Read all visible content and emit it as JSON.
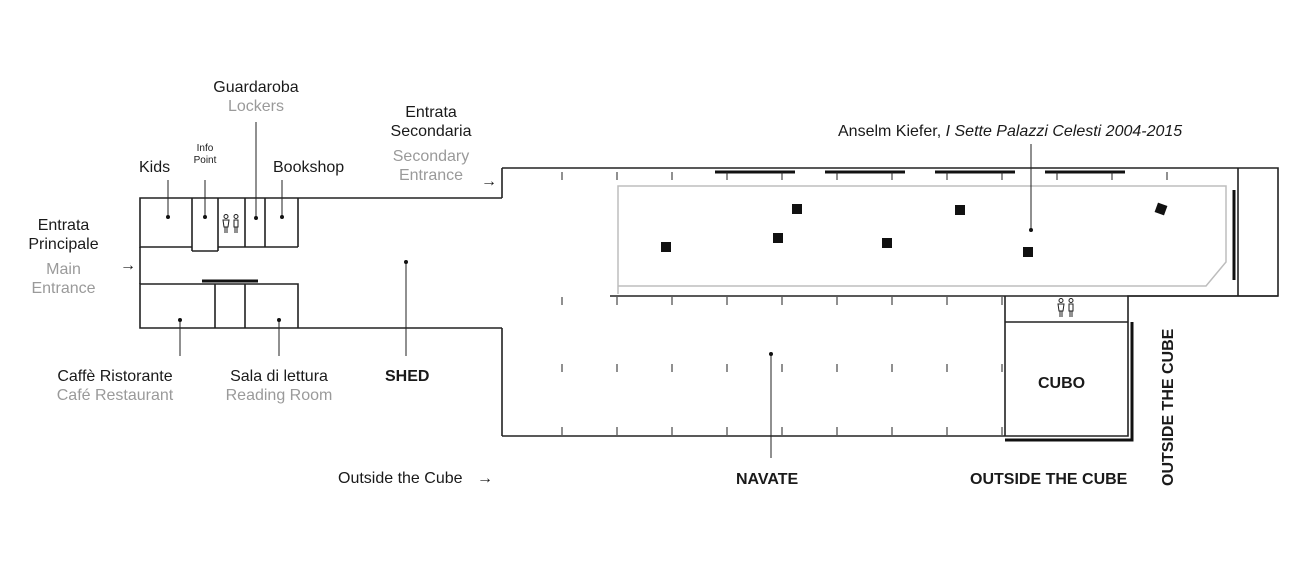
{
  "labels": {
    "guardaroba": "Guardaroba",
    "lockers": "Lockers",
    "kids": "Kids",
    "info_point": "Info Point",
    "bookshop": "Bookshop",
    "entrata_principale": "Entrata Principale",
    "main_entrance": "Main Entrance",
    "entrata_secondaria": "Entrata Secondaria",
    "secondary_entrance": "Secondary Entrance",
    "artwork_artist": "Anselm Kiefer,",
    "artwork_title": "I Sette Palazzi Celesti 2004-2015",
    "caffe_ristorante": "Caffè Ristorante",
    "cafe_restaurant": "Café Restaurant",
    "sala_di_lettura": "Sala di lettura",
    "reading_room": "Reading Room",
    "shed": "SHED",
    "outside_the_cube_text": "Outside the Cube",
    "navate": "NAVATE",
    "cubo": "CUBO",
    "outside_the_cube_bottom": "OUTSIDE THE CUBE",
    "outside_the_cube_vertical": "OUTSIDE THE CUBE"
  },
  "arrows": {
    "main": "→",
    "secondary": "→",
    "outside": "→"
  },
  "icons": {
    "restroom_1": "restroom-icon",
    "restroom_2": "restroom-icon",
    "artwork_marker": "square-marker-icon"
  },
  "colors": {
    "line": "#222222",
    "secondary_text": "#9a9a9a",
    "interior_wall": "#bdbdbd"
  }
}
